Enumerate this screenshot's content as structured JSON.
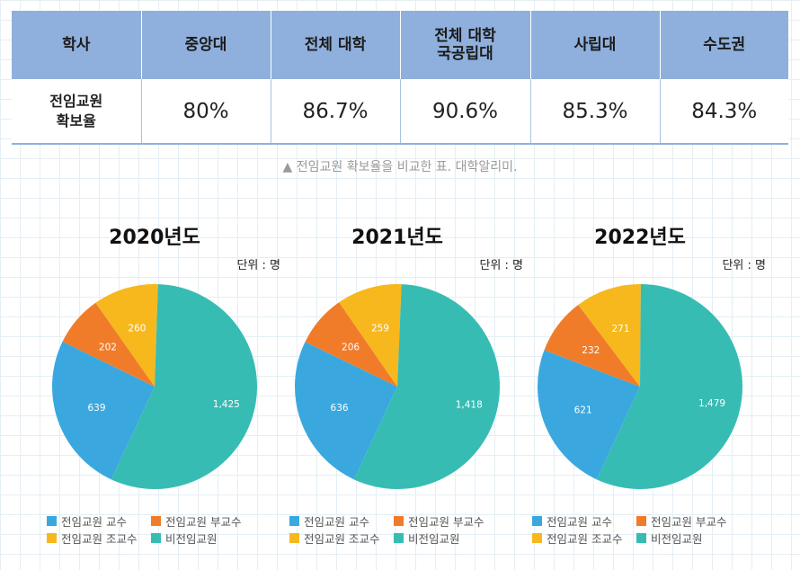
{
  "table": {
    "headers": [
      "학사",
      "중앙대",
      "전체 대학",
      "전체 대학\n국공립대",
      "사립대",
      "수도권"
    ],
    "row_label": "전임교원\n확보율",
    "values": [
      "80%",
      "86.7%",
      "90.6%",
      "85.3%",
      "84.3%"
    ]
  },
  "caption": "▲ 전임교원 확보율을 비교한 표. 대학알리미.",
  "colors": {
    "전임교원 교수": "#3aa8df",
    "전임교원 부교수": "#f07c2a",
    "전임교원 조교수": "#f6b81d",
    "비전임교원": "#37bcb3"
  },
  "chart_data": [
    {
      "type": "pie",
      "title": "2020년도",
      "unit_label": "단위 : 명",
      "categories": [
        "전임교원 교수",
        "전임교원 부교수",
        "전임교원 조교수",
        "비전임교원"
      ],
      "values": [
        639,
        202,
        260,
        1425
      ],
      "value_labels": [
        "639",
        "202",
        "260",
        "1,425"
      ],
      "legend": "bottom"
    },
    {
      "type": "pie",
      "title": "2021년도",
      "unit_label": "단위 : 명",
      "categories": [
        "전임교원 교수",
        "전임교원 부교수",
        "전임교원 조교수",
        "비전임교원"
      ],
      "values": [
        636,
        206,
        259,
        1418
      ],
      "value_labels": [
        "636",
        "206",
        "259",
        "1,418"
      ],
      "legend": "bottom"
    },
    {
      "type": "pie",
      "title": "2022년도",
      "unit_label": "단위 : 명",
      "categories": [
        "전임교원 교수",
        "전임교원 부교수",
        "전임교원 조교수",
        "비전임교원"
      ],
      "values": [
        621,
        232,
        271,
        1479
      ],
      "value_labels": [
        "621",
        "232",
        "271",
        "1,479"
      ],
      "legend": "bottom"
    }
  ]
}
